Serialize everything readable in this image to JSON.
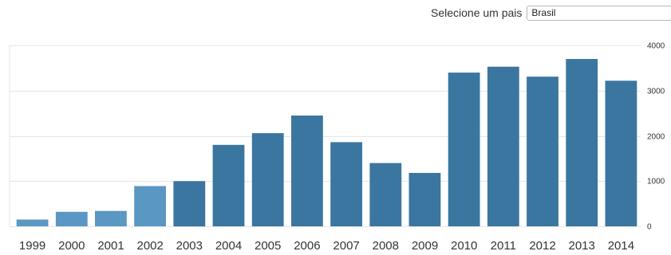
{
  "controls": {
    "country_label": "Selecione um pais",
    "country_value": "Brasil"
  },
  "colors": {
    "bar_dark": "#3b76a0",
    "bar_light": "#5a97c2",
    "grid": "#e6e6e6",
    "text": "#333333"
  },
  "chart_data": {
    "type": "bar",
    "categories": [
      "1999",
      "2000",
      "2001",
      "2002",
      "2003",
      "2004",
      "2005",
      "2006",
      "2007",
      "2008",
      "2009",
      "2010",
      "2011",
      "2012",
      "2013",
      "2014"
    ],
    "values": [
      150,
      320,
      340,
      890,
      1000,
      1800,
      2060,
      2450,
      1860,
      1400,
      1180,
      3400,
      3530,
      3310,
      3700,
      3220
    ],
    "shade": [
      "light",
      "light",
      "light",
      "light",
      "dark",
      "dark",
      "dark",
      "dark",
      "dark",
      "dark",
      "dark",
      "dark",
      "dark",
      "dark",
      "dark",
      "dark"
    ],
    "yticks": [
      "0",
      "1000",
      "2000",
      "3000",
      "4000"
    ],
    "ylim": [
      0,
      4000
    ],
    "y_axis_position": "right",
    "grid": true,
    "title": "",
    "xlabel": "",
    "ylabel": ""
  }
}
